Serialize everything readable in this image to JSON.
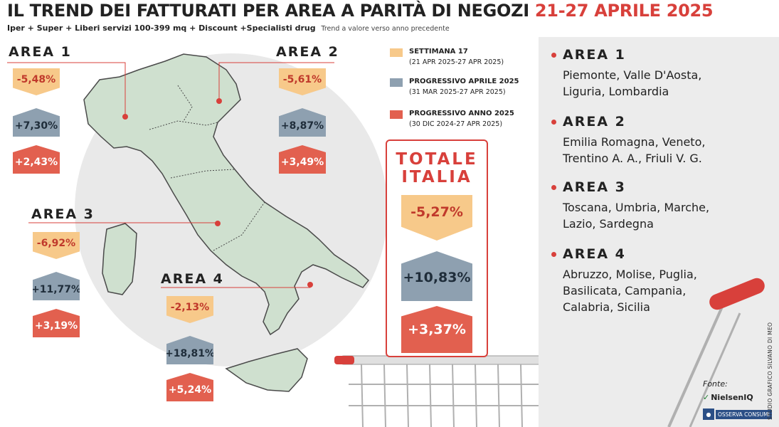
{
  "title": {
    "main": "IL TREND DEI FATTURATI PER AREA A PARITÀ DI NEGOZI",
    "date": "21-27 APRILE 2025"
  },
  "subtitle": {
    "text": "Iper + Super + Liberi servizi 100-399 mq + Discount +Specialisti drug",
    "note": "Trend a valore verso anno precedente"
  },
  "areas": [
    {
      "label": "AREA 1",
      "settimana": "-5,48%",
      "progressivo_aprile": "+7,30%",
      "progressivo_anno": "+2,43%"
    },
    {
      "label": "AREA 2",
      "settimana": "-5,61%",
      "progressivo_aprile": "+8,87%",
      "progressivo_anno": "+3,49%"
    },
    {
      "label": "AREA 3",
      "settimana": "-6,92%",
      "progressivo_aprile": "+11,77%",
      "progressivo_anno": "+3,19%"
    },
    {
      "label": "AREA 4",
      "settimana": "-2,13%",
      "progressivo_aprile": "+18,81%",
      "progressivo_anno": "+5,24%"
    }
  ],
  "legend": [
    {
      "title": "SETTIMANA 17",
      "dates": "(21 APR 2025-27 APR 2025)",
      "color": "#f7c98a"
    },
    {
      "title": "PROGRESSIVO APRILE 2025",
      "dates": "(31 MAR 2025-27 APR 2025)",
      "color": "#8ea0b0"
    },
    {
      "title": "PROGRESSIVO ANNO 2025",
      "dates": "(30 DIC 2024-27 APR 2025)",
      "color": "#e2604f"
    }
  ],
  "totale": {
    "line1": "TOTALE",
    "line2": "ITALIA",
    "settimana": "-5,27%",
    "progressivo_aprile": "+10,83%",
    "progressivo_anno": "+3,37%"
  },
  "regions": [
    {
      "label": "AREA 1",
      "line1": "Piemonte, Valle D'Aosta,",
      "line2": "Liguria, Lombardia"
    },
    {
      "label": "AREA 2",
      "line1": "Emilia Romagna, Veneto,",
      "line2": "Trentino A. A., Friuli V. G."
    },
    {
      "label": "AREA 3",
      "line1": "Toscana, Umbria, Marche,",
      "line2": "Lazio, Sardegna"
    },
    {
      "label": "AREA 4",
      "line1": "Abruzzo, Molise, Puglia,",
      "line2": "Basilicata, Campania,",
      "line3": "Calabria, Sicilia"
    }
  ],
  "source": {
    "label": "Fonte:",
    "logo1": "NielsenIQ",
    "logo2": "OSSERVA CONSUMI"
  },
  "credit": "STUDIO GRAFICO SILVANO DI MEO",
  "colors": {
    "accent_red": "#d8403b",
    "yellow": "#f7c98a",
    "blue_grey": "#8ea0b0",
    "red_badge": "#e2604f",
    "map_green": "#cfe0cf",
    "panel_grey": "#ececec"
  }
}
